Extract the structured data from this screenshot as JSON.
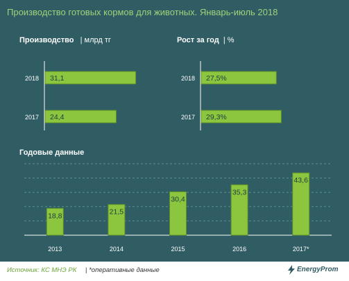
{
  "header": {
    "title": "Производство готовых кормов для животных. Январь-июль 2018"
  },
  "colors": {
    "background": "#2f5d63",
    "bar": "#8cc63f",
    "bar_border": "#5e8f2a",
    "title": "#9fd27a",
    "grid": "#5f8d92"
  },
  "chart_data": [
    {
      "type": "bar",
      "orientation": "horizontal",
      "title": "Производство",
      "unit": "млрд тг",
      "categories": [
        "2018",
        "2017"
      ],
      "values": [
        31.1,
        24.4
      ],
      "value_labels": [
        "31,1",
        "24,4"
      ],
      "xlim": [
        0,
        35
      ]
    },
    {
      "type": "bar",
      "orientation": "horizontal",
      "title": "Рост за год",
      "unit": "%",
      "categories": [
        "2018",
        "2017"
      ],
      "values": [
        27.5,
        29.3
      ],
      "value_labels": [
        "27,5%",
        "29,3%"
      ],
      "xlim": [
        0,
        32
      ]
    },
    {
      "type": "bar",
      "orientation": "vertical",
      "title": "Годовые данные",
      "categories": [
        "2013",
        "2014",
        "2015",
        "2016",
        "2017*"
      ],
      "values": [
        18.8,
        21.5,
        30.4,
        35.3,
        43.6
      ],
      "value_labels": [
        "18,8",
        "21,5",
        "30,4",
        "35,3",
        "43,6"
      ],
      "ylim": [
        0,
        50
      ],
      "grid": true
    }
  ],
  "footer": {
    "source": "Источник: КС МНЭ РК",
    "separator": "|",
    "note": "*оперативные данные",
    "logo": "EnergyProm",
    "logo_icon": "energyprom-logo-icon"
  }
}
